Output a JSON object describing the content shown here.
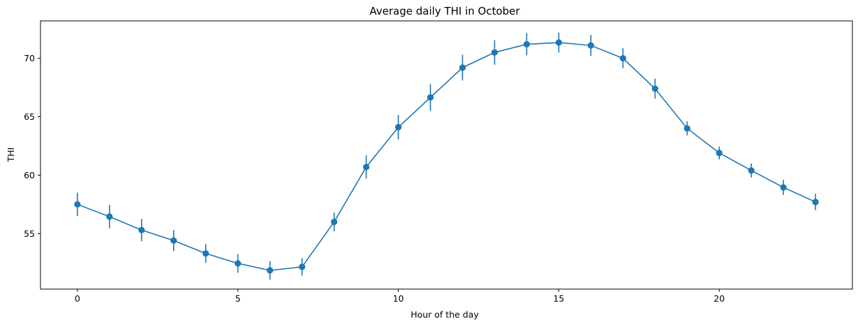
{
  "chart_data": {
    "type": "line",
    "title": "Average daily THI in October",
    "xlabel": "Hour of the day",
    "ylabel": "THI",
    "xlim": [
      -1.15,
      24.15
    ],
    "ylim": [
      50.25,
      73.2
    ],
    "xticks": [
      0,
      5,
      10,
      15,
      20
    ],
    "yticks": [
      55,
      60,
      65,
      70
    ],
    "grid": false,
    "legend": "none",
    "color": "#1f77b4",
    "series": [
      {
        "x": [
          0,
          1,
          2,
          3,
          4,
          5,
          6,
          7,
          8,
          9,
          10,
          11,
          12,
          13,
          14,
          15,
          16,
          17,
          18,
          19,
          20,
          21,
          22,
          23
        ],
        "values": [
          57.5,
          56.45,
          55.3,
          54.4,
          53.3,
          52.45,
          51.85,
          52.15,
          56.0,
          60.7,
          64.1,
          66.65,
          69.2,
          70.5,
          71.2,
          71.35,
          71.1,
          70.0,
          67.4,
          64.0,
          61.9,
          60.4,
          58.95,
          57.7
        ],
        "error": [
          1.0,
          1.0,
          0.95,
          0.9,
          0.8,
          0.8,
          0.8,
          0.75,
          0.8,
          1.0,
          1.05,
          1.15,
          1.1,
          1.05,
          0.95,
          0.85,
          0.9,
          0.85,
          0.85,
          0.6,
          0.55,
          0.6,
          0.65,
          0.7
        ]
      }
    ]
  }
}
